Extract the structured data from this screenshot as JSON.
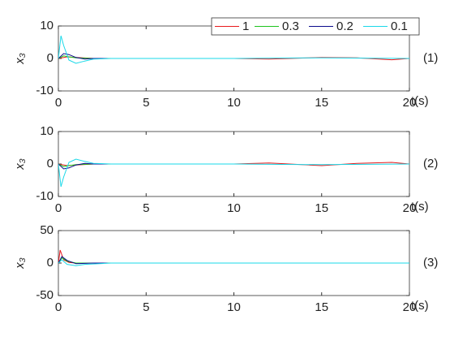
{
  "chart_data": [
    {
      "type": "line",
      "ylabel": "x₃",
      "xlabel": "t(s)",
      "annotation": "(1)",
      "xlim": [
        0,
        20
      ],
      "xticks": [
        0,
        5,
        10,
        15,
        20
      ],
      "ylim": [
        -10,
        10
      ],
      "yticks": [
        -10,
        0,
        10
      ],
      "legend": "upper right",
      "series": [
        {
          "name": "1",
          "color": "#e8191c",
          "x": [
            0,
            0.5,
            1,
            2,
            5,
            10,
            12,
            15,
            17,
            19,
            20
          ],
          "values": [
            0,
            0.5,
            0.3,
            0,
            0,
            0,
            -0.2,
            0.3,
            0.2,
            -0.4,
            0
          ]
        },
        {
          "name": "0.3",
          "color": "#1fc41f",
          "x": [
            0,
            0.3,
            0.6,
            1,
            2,
            3,
            3.8
          ],
          "values": [
            0,
            0.8,
            0.5,
            0.2,
            0,
            0,
            0
          ]
        },
        {
          "name": "0.2",
          "color": "#0a0a8c",
          "x": [
            0,
            0.3,
            0.6,
            1,
            1.5,
            2,
            2.8
          ],
          "values": [
            0,
            1.5,
            1.2,
            0.3,
            -0.2,
            0,
            0
          ]
        },
        {
          "name": "0.1",
          "color": "#19d8e8",
          "x": [
            0,
            0.15,
            0.3,
            0.6,
            1,
            1.5,
            2,
            3,
            5,
            10,
            15,
            20
          ],
          "values": [
            0,
            7,
            4,
            -0.5,
            -1.5,
            -0.8,
            -0.2,
            0,
            0,
            0,
            0.2,
            0
          ]
        }
      ]
    },
    {
      "type": "line",
      "ylabel": "x₃",
      "xlabel": "t(s)",
      "annotation": "(2)",
      "xlim": [
        0,
        20
      ],
      "xticks": [
        0,
        5,
        10,
        15,
        20
      ],
      "ylim": [
        -10,
        10
      ],
      "yticks": [
        -10,
        0,
        10
      ],
      "series": [
        {
          "color": "#e8191c",
          "x": [
            0,
            0.5,
            1,
            2,
            5,
            10,
            12,
            15,
            17,
            19,
            20
          ],
          "values": [
            0,
            -0.5,
            -0.3,
            0,
            0,
            0,
            0.3,
            -0.5,
            0.2,
            0.5,
            0
          ]
        },
        {
          "color": "#1fc41f",
          "x": [
            0,
            0.3,
            0.6,
            1,
            2,
            3,
            3.8
          ],
          "values": [
            0,
            -0.8,
            -0.5,
            -0.2,
            0,
            0,
            0
          ]
        },
        {
          "color": "#0a0a8c",
          "x": [
            0,
            0.3,
            0.6,
            1,
            1.5,
            2,
            2.8
          ],
          "values": [
            0,
            -1.5,
            -1.2,
            -0.3,
            0.2,
            0,
            0
          ]
        },
        {
          "color": "#19d8e8",
          "x": [
            0,
            0.15,
            0.3,
            0.6,
            1,
            1.5,
            2,
            3,
            5,
            10,
            15,
            20
          ],
          "values": [
            0,
            -7,
            -4,
            0.5,
            1.5,
            0.8,
            0.2,
            0,
            0,
            0,
            -0.2,
            0
          ]
        }
      ]
    },
    {
      "type": "line",
      "ylabel": "x₃",
      "xlabel": "t(s)",
      "annotation": "(3)",
      "xlim": [
        0,
        20
      ],
      "xticks": [
        0,
        5,
        10,
        15,
        20
      ],
      "ylim": [
        -50,
        50
      ],
      "yticks": [
        -50,
        0,
        50
      ],
      "series": [
        {
          "color": "#e8191c",
          "x": [
            0,
            0.1,
            0.3,
            0.6,
            1,
            2,
            5,
            10,
            15,
            20
          ],
          "values": [
            0,
            20,
            5,
            1,
            0,
            0,
            0,
            0,
            0,
            0
          ]
        },
        {
          "color": "#1fc41f",
          "x": [
            0,
            0.2,
            0.5,
            1,
            2,
            3.8
          ],
          "values": [
            0,
            8,
            3,
            0,
            0,
            0
          ]
        },
        {
          "color": "#0a0a8c",
          "x": [
            0,
            0.2,
            0.5,
            1,
            2,
            2.8
          ],
          "values": [
            0,
            10,
            4,
            -1,
            0,
            0
          ]
        },
        {
          "color": "#19d8e8",
          "x": [
            0,
            0.2,
            0.5,
            1,
            1.5,
            3,
            10,
            20
          ],
          "values": [
            0,
            5,
            -2,
            -4,
            -2,
            0,
            0,
            0
          ]
        }
      ]
    }
  ]
}
